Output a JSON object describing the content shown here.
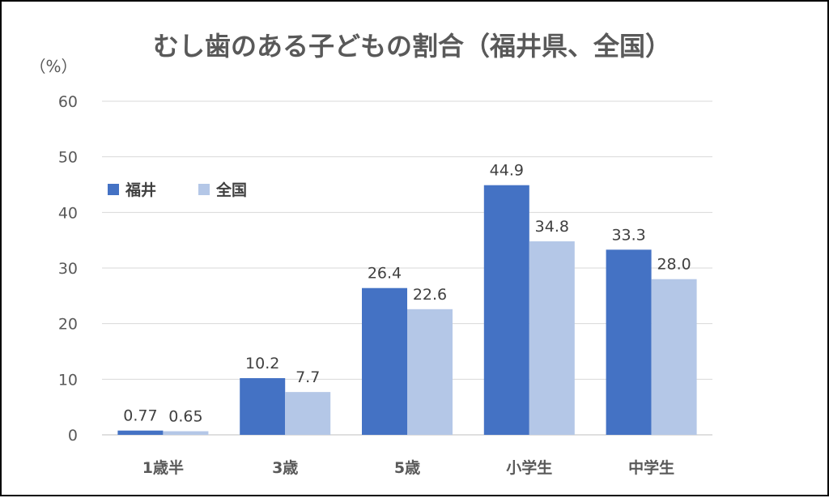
{
  "chart_data": {
    "type": "bar",
    "title": "むし歯のある子どもの割合（福井県、全国）",
    "ylabel": "（%）",
    "xlabel": "",
    "categories": [
      "1歳半",
      "3歳",
      "5歳",
      "小学生",
      "中学生"
    ],
    "series": [
      {
        "name": "福井",
        "values": [
          0.77,
          10.2,
          26.4,
          44.9,
          33.3
        ],
        "labels": [
          "0.77",
          "10.2",
          "26.4",
          "44.9",
          "33.3"
        ],
        "color": "#4472C4"
      },
      {
        "name": "全国",
        "values": [
          0.65,
          7.7,
          22.6,
          34.8,
          28.0
        ],
        "labels": [
          "0.65",
          "7.7",
          "22.6",
          "34.8",
          "28.0"
        ],
        "color": "#B4C7E7"
      }
    ],
    "ylim": [
      0,
      60
    ],
    "yticks": [
      "0",
      "10",
      "20",
      "30",
      "40",
      "50",
      "60"
    ],
    "grid": true,
    "legend_position": "top-left"
  }
}
